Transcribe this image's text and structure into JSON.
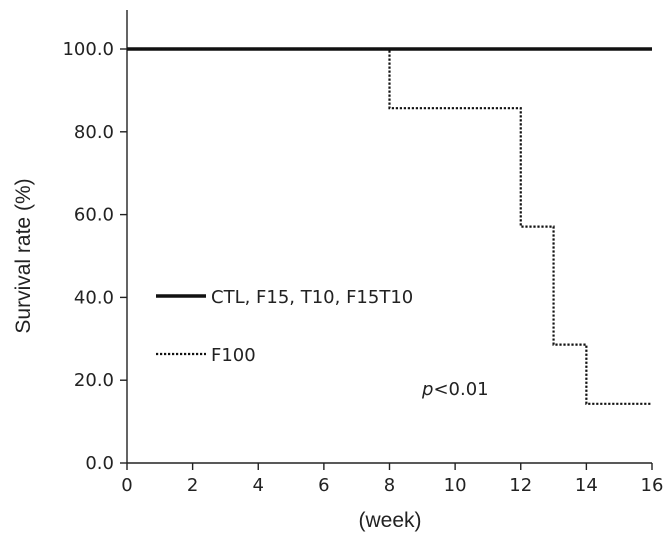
{
  "chart_data": {
    "type": "line",
    "subtype": "step",
    "title": "",
    "xlabel": "(week)",
    "ylabel": "Survival rate (%)",
    "xlim": [
      0,
      16
    ],
    "ylim": [
      0,
      100
    ],
    "x_ticks": [
      0,
      2,
      4,
      6,
      8,
      10,
      12,
      14,
      16
    ],
    "y_ticks": [
      "0.0",
      "20.0",
      "40.0",
      "60.0",
      "80.0",
      "100.0"
    ],
    "grid": false,
    "legend_position": "left",
    "series": [
      {
        "name": "CTL, F15, T10, F15T10",
        "style": "solid",
        "color": "#111111",
        "x": [
          0,
          16
        ],
        "y": [
          100,
          100
        ]
      },
      {
        "name": "F100",
        "style": "dotted",
        "color": "#111111",
        "x": [
          0,
          8,
          12,
          13,
          14,
          16
        ],
        "y": [
          100,
          85.7,
          57.1,
          28.6,
          14.3,
          14.3
        ]
      }
    ],
    "annotations": [
      {
        "italic": "p",
        "rest": "<0.01"
      }
    ]
  }
}
